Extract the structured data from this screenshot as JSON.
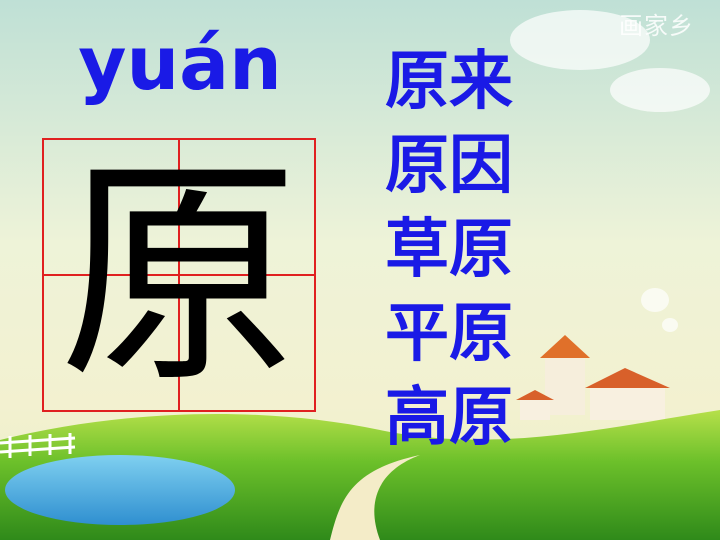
{
  "watermark": "画家乡",
  "pinyin": "yuán",
  "character": "原",
  "words": [
    "原来",
    "原因",
    "草原",
    "平原",
    "高原"
  ],
  "colors": {
    "text_blue": "#1a1ae6",
    "grid_red": "#e02020",
    "sky_top": "#cfe6c8",
    "grass": "#6cc02a"
  }
}
